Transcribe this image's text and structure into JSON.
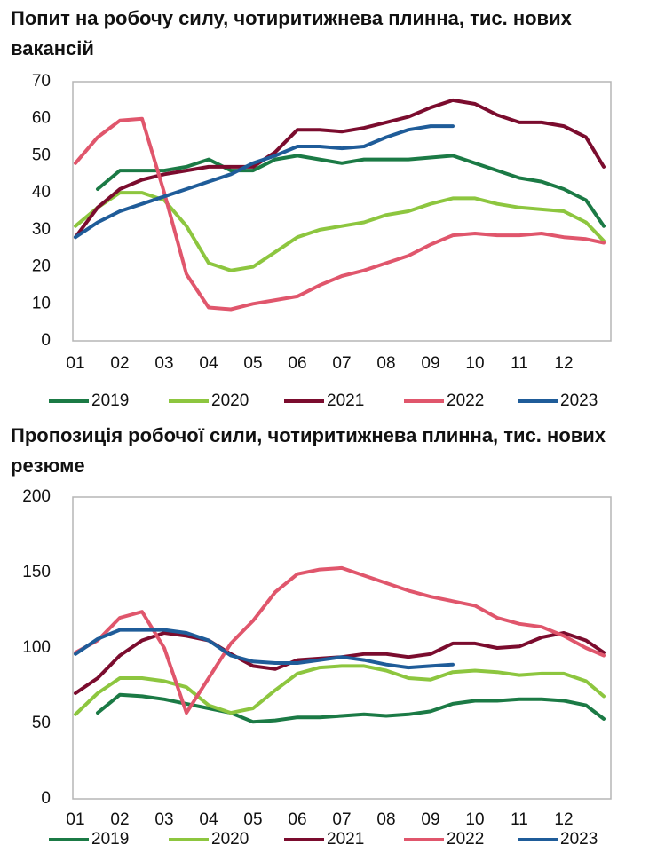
{
  "chart_data": [
    {
      "type": "line",
      "title": "Попит на робочу силу, чотиритижнева плинна, тис. нових вакансій",
      "x": [
        1,
        1.5,
        2,
        2.5,
        3,
        3.5,
        4,
        4.5,
        5,
        5.5,
        6,
        6.5,
        7,
        7.5,
        8,
        8.5,
        9,
        9.5,
        10,
        10.5,
        11,
        11.5,
        12,
        12.5,
        12.9
      ],
      "xlim": [
        1,
        13
      ],
      "xticks": [
        {
          "value": 1,
          "label": "01"
        },
        {
          "value": 2,
          "label": "02"
        },
        {
          "value": 3,
          "label": "03"
        },
        {
          "value": 4,
          "label": "04"
        },
        {
          "value": 5,
          "label": "05"
        },
        {
          "value": 6,
          "label": "06"
        },
        {
          "value": 7,
          "label": "07"
        },
        {
          "value": 8,
          "label": "08"
        },
        {
          "value": 9,
          "label": "09"
        },
        {
          "value": 10,
          "label": "10"
        },
        {
          "value": 11,
          "label": "11"
        },
        {
          "value": 12,
          "label": "12"
        }
      ],
      "ylim": [
        0,
        70
      ],
      "yticks": [
        0,
        10,
        20,
        30,
        40,
        50,
        60,
        70
      ],
      "grid": false,
      "legend": "bottom",
      "series": [
        {
          "name": "2019",
          "color": "#1b7a45",
          "values": [
            null,
            41,
            46,
            46,
            46,
            47,
            49,
            46,
            46,
            49,
            50,
            49,
            48,
            49,
            49,
            49,
            49.5,
            50,
            48,
            46,
            44,
            43,
            41,
            38,
            31
          ]
        },
        {
          "name": "2020",
          "color": "#8dc63f",
          "values": [
            31,
            36,
            40,
            40,
            38,
            31,
            21,
            19,
            20,
            24,
            28,
            30,
            31,
            32,
            34,
            35,
            37,
            38.5,
            38.5,
            37,
            36,
            35.5,
            35,
            32,
            27
          ]
        },
        {
          "name": "2021",
          "color": "#7b0c2e",
          "values": [
            28,
            36,
            41,
            43.5,
            45,
            46,
            47,
            47,
            47,
            51,
            57,
            57,
            56.5,
            57.5,
            59,
            60.5,
            63,
            65,
            64,
            61,
            59,
            59,
            58,
            55,
            47
          ]
        },
        {
          "name": "2022",
          "color": "#e0566c",
          "values": [
            48,
            55,
            59.5,
            60,
            40,
            18,
            9,
            8.5,
            10,
            11,
            12,
            15,
            17.5,
            19,
            21,
            23,
            26,
            28.5,
            29,
            28.5,
            28.5,
            29,
            28,
            27.5,
            26.5
          ]
        },
        {
          "name": "2023",
          "color": "#1f5c99",
          "values": [
            28,
            32,
            35,
            37,
            39,
            41,
            43,
            45,
            48,
            50,
            52.5,
            52.5,
            52,
            52.5,
            55,
            57,
            58,
            58,
            null,
            null,
            null,
            null,
            null,
            null,
            null
          ]
        }
      ]
    },
    {
      "type": "line",
      "title": "Пропозиція робочої сили, чотиритижнева плинна, тис. нових резюме",
      "x": [
        1,
        1.5,
        2,
        2.5,
        3,
        3.5,
        4,
        4.5,
        5,
        5.5,
        6,
        6.5,
        7,
        7.5,
        8,
        8.5,
        9,
        9.5,
        10,
        10.5,
        11,
        11.5,
        12,
        12.5,
        12.9
      ],
      "xlim": [
        1,
        13
      ],
      "xticks": [
        {
          "value": 1,
          "label": "01"
        },
        {
          "value": 2,
          "label": "02"
        },
        {
          "value": 3,
          "label": "03"
        },
        {
          "value": 4,
          "label": "04"
        },
        {
          "value": 5,
          "label": "05"
        },
        {
          "value": 6,
          "label": "06"
        },
        {
          "value": 7,
          "label": "07"
        },
        {
          "value": 8,
          "label": "08"
        },
        {
          "value": 9,
          "label": "09"
        },
        {
          "value": 10,
          "label": "10"
        },
        {
          "value": 11,
          "label": "11"
        },
        {
          "value": 12,
          "label": "12"
        }
      ],
      "ylim": [
        0,
        200
      ],
      "yticks": [
        0,
        50,
        100,
        150,
        200
      ],
      "grid": false,
      "legend": "bottom",
      "series": [
        {
          "name": "2019",
          "color": "#1b7a45",
          "values": [
            null,
            57,
            69,
            68,
            66,
            63,
            60,
            57,
            51,
            52,
            54,
            54,
            55,
            56,
            55,
            56,
            58,
            63,
            65,
            65,
            66,
            66,
            65,
            62,
            53
          ]
        },
        {
          "name": "2020",
          "color": "#8dc63f",
          "values": [
            56,
            70,
            80,
            80,
            78,
            74,
            62,
            57,
            60,
            72,
            83,
            87,
            88,
            88,
            85,
            80,
            79,
            84,
            85,
            84,
            82,
            83,
            83,
            78,
            68
          ]
        },
        {
          "name": "2021",
          "color": "#7b0c2e",
          "values": [
            70,
            80,
            95,
            105,
            110,
            108,
            105,
            96,
            88,
            86,
            92,
            93,
            94,
            96,
            96,
            94,
            96,
            103,
            103,
            100,
            101,
            107,
            110,
            105,
            97
          ]
        },
        {
          "name": "2022",
          "color": "#e0566c",
          "values": [
            97,
            105,
            120,
            124,
            100,
            57,
            80,
            103,
            118,
            137,
            149,
            152,
            153,
            148,
            143,
            138,
            134,
            131,
            128,
            120,
            116,
            114,
            108,
            100,
            95
          ]
        },
        {
          "name": "2023",
          "color": "#1f5c99",
          "values": [
            96,
            106,
            112,
            112,
            112,
            110,
            105,
            95,
            91,
            90,
            90,
            92,
            94,
            92,
            89,
            87,
            88,
            89,
            null,
            null,
            null,
            null,
            null,
            null,
            null
          ]
        }
      ]
    }
  ]
}
